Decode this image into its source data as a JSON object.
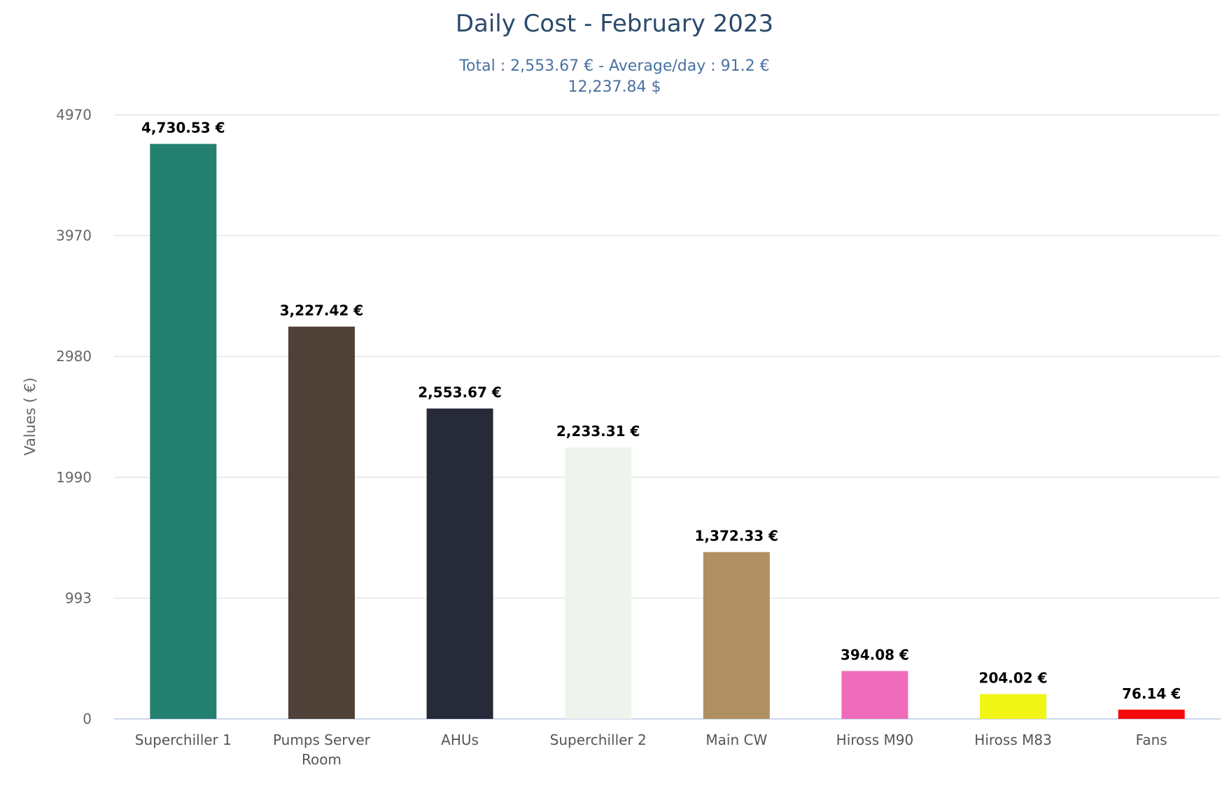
{
  "chart_data": {
    "type": "bar",
    "title": "Daily Cost - February 2023",
    "subtitle_lines": [
      "Total : 2,553.67 € - Average/day : 91.2 €",
      "12,237.84 $"
    ],
    "xlabel": "",
    "ylabel": "Values ( €)",
    "ylim": [
      0,
      4970
    ],
    "yticks": [
      "0",
      "993",
      "1990",
      "2980",
      "3970",
      "4970"
    ],
    "grid": true,
    "categories": [
      "Superchiller 1",
      "Pumps Server Room",
      "AHUs",
      "Superchiller 2",
      "Main CW",
      "Hiross M90",
      "Hiross M83",
      "Fans"
    ],
    "values": [
      4730.53,
      3227.42,
      2553.67,
      2233.31,
      1372.33,
      394.08,
      204.02,
      76.14
    ],
    "data_labels": [
      "4,730.53 €",
      "3,227.42 €",
      "2,553.67 €",
      "2,233.31 €",
      "1,372.33 €",
      "394.08 €",
      "204.02 €",
      "76.14 €"
    ],
    "colors": [
      "#23806f",
      "#4f4137",
      "#272a38",
      "#eef3ee",
      "#b08f62",
      "#ee6cba",
      "#f0f516",
      "#f20a0a"
    ]
  }
}
